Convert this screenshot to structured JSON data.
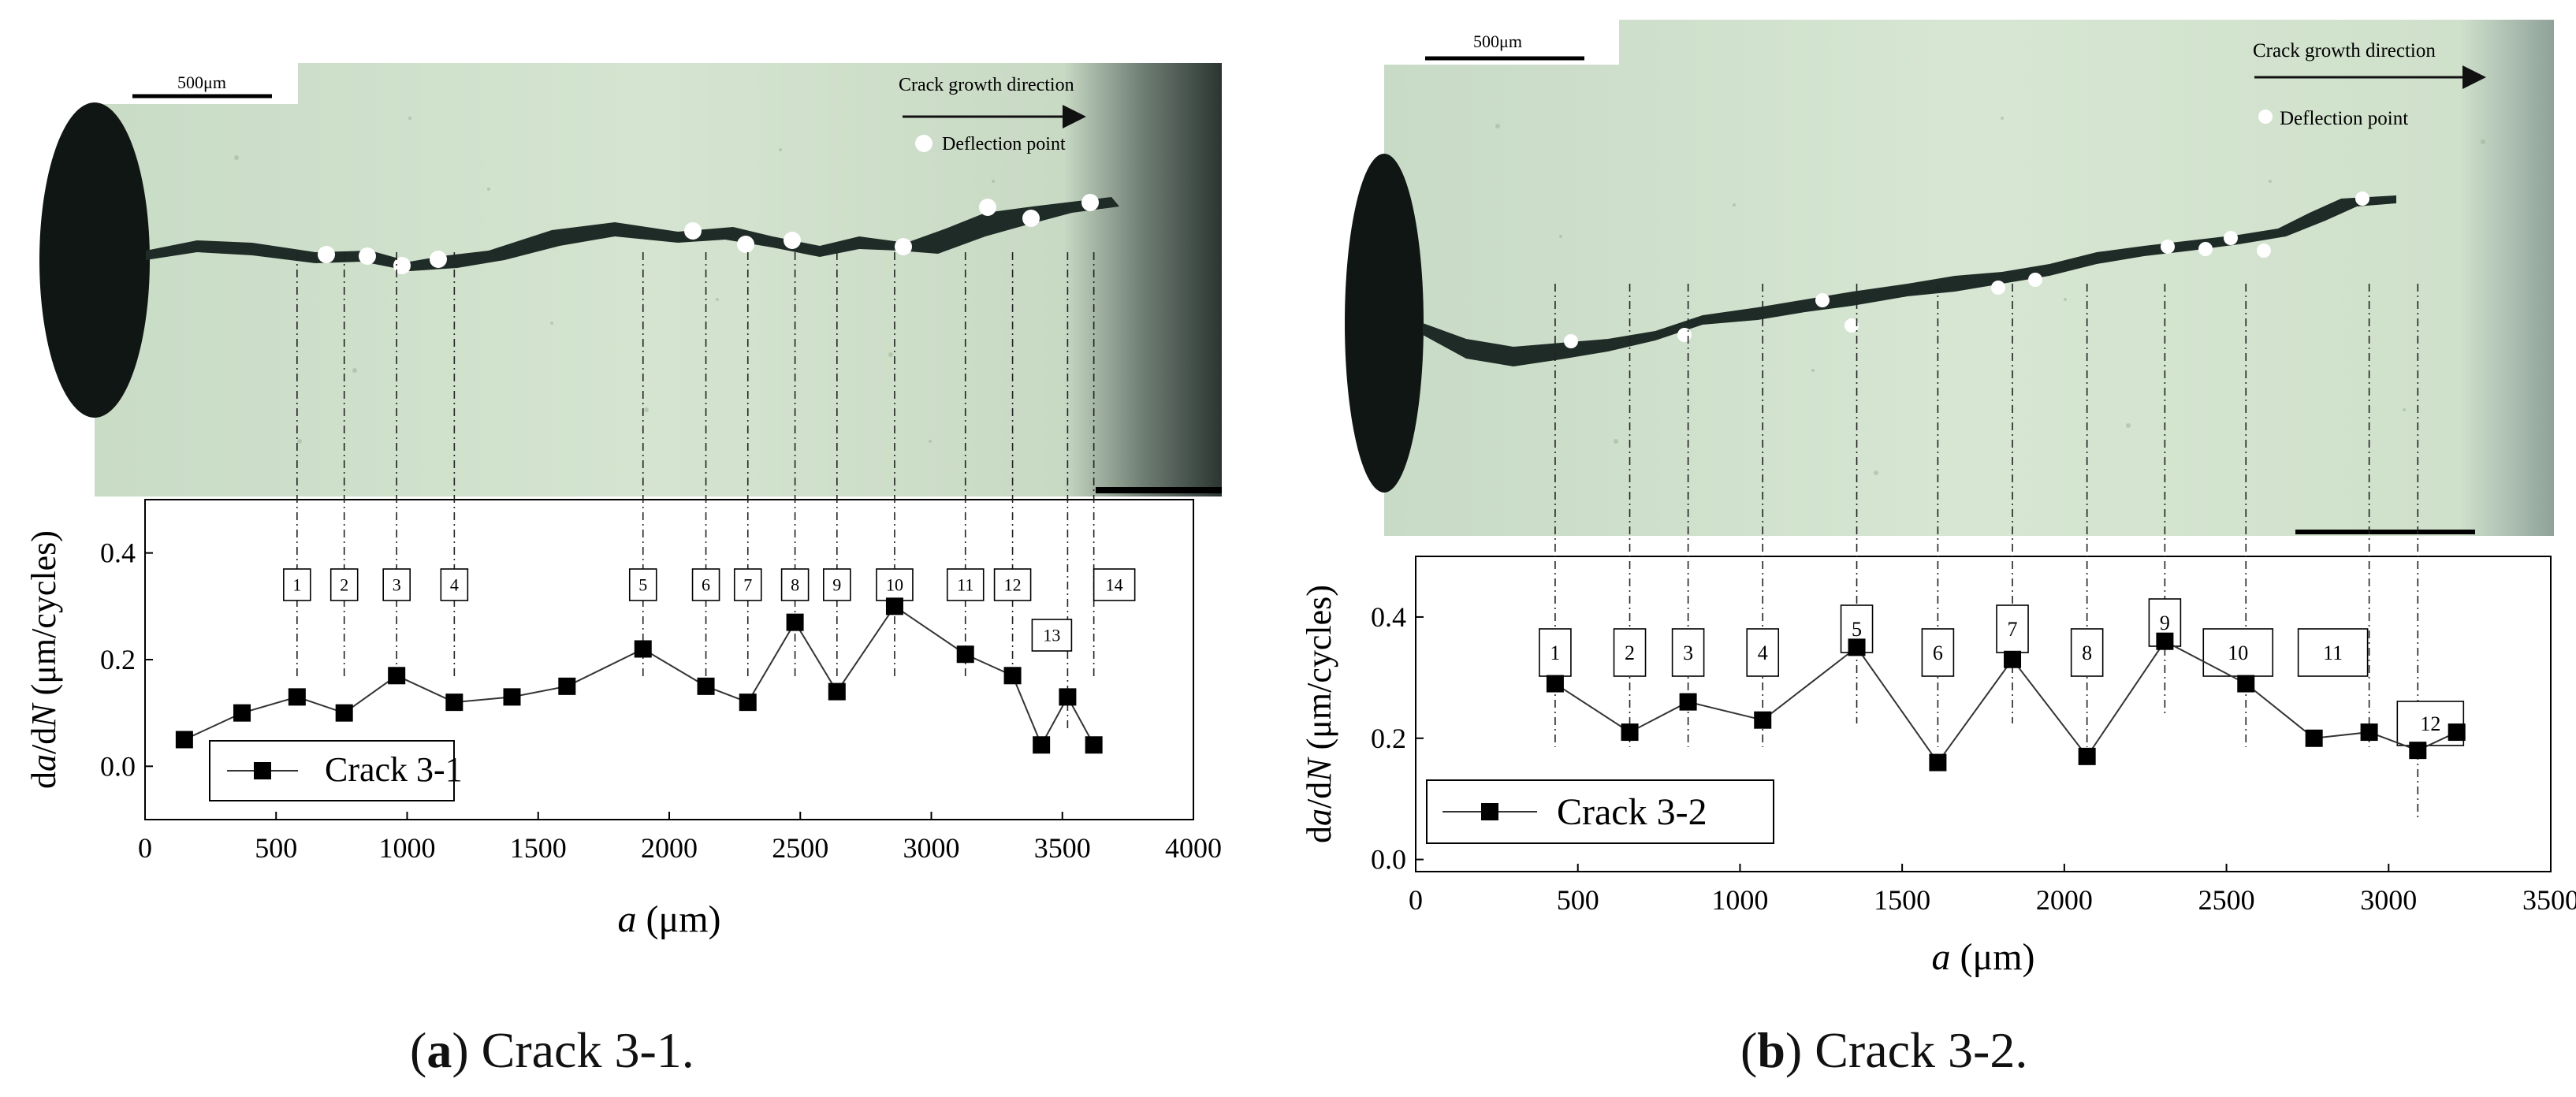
{
  "panels": [
    {
      "id": "a",
      "micrograph": {
        "scale_bar_label": "500μm",
        "direction_label": "Crack growth direction",
        "deflection_label": "Deflection point"
      },
      "caption": {
        "letter": "a",
        "text": ") Crack 3-1."
      }
    },
    {
      "id": "b",
      "micrograph": {
        "scale_bar_label": "500μm",
        "direction_label": "Crack growth direction",
        "deflection_label": "Deflection point"
      },
      "caption": {
        "letter": "b",
        "text": ") Crack 3-2."
      }
    }
  ],
  "colors": {
    "micrograph_bg": "#cfe0cc",
    "crack": "#1e2a26",
    "marker": "#000000",
    "line": "#333333",
    "dashdot": "#222222"
  },
  "chart_data": [
    {
      "type": "line",
      "title": "Crack 3-1",
      "xlabel_italic": "a",
      "xlabel_rest": " (μm)",
      "ylabel": "da/dN (μm/cycles)",
      "ylabel_parts": {
        "d1": "d",
        "a": "a",
        "slash": "/d",
        "N": "N",
        "unit": " (μm/cycles)"
      },
      "xlim": [
        0,
        4000
      ],
      "ylim": [
        -0.1,
        0.5
      ],
      "xticks": [
        0,
        500,
        1000,
        1500,
        2000,
        2500,
        3000,
        3500,
        4000
      ],
      "yticks": [
        0.0,
        0.2,
        0.4
      ],
      "ytick_labels": [
        "0.0",
        "0.2",
        "0.4"
      ],
      "legend": "Crack 3-1",
      "legend_position": "bottom-left",
      "series": [
        {
          "name": "Crack 3-1",
          "x": [
            150,
            370,
            580,
            760,
            960,
            1180,
            1400,
            1610,
            1900,
            2140,
            2300,
            2480,
            2640,
            2860,
            3130,
            3310,
            3420,
            3520,
            3620
          ],
          "y": [
            0.05,
            0.1,
            0.13,
            0.1,
            0.17,
            0.12,
            0.13,
            0.15,
            0.22,
            0.15,
            0.12,
            0.27,
            0.14,
            0.3,
            0.21,
            0.17,
            0.04,
            0.13,
            0.04
          ]
        }
      ],
      "deflection_labels": [
        "1",
        "2",
        "3",
        "4",
        "5",
        "6",
        "7",
        "8",
        "9",
        "10",
        "11",
        "12",
        "13",
        "14"
      ],
      "deflection_x": [
        580,
        760,
        960,
        1180,
        1900,
        2140,
        2300,
        2480,
        2640,
        2860,
        3130,
        3310,
        3520,
        3620
      ]
    },
    {
      "type": "line",
      "title": "Crack 3-2",
      "xlabel_italic": "a",
      "xlabel_rest": " (μm)",
      "ylabel": "da/dN (μm/cycles)",
      "ylabel_parts": {
        "d1": "d",
        "a": "a",
        "slash": "/d",
        "N": "N",
        "unit": " (μm/cycles)"
      },
      "xlim": [
        0,
        3500
      ],
      "ylim": [
        -0.02,
        0.5
      ],
      "xticks": [
        0,
        500,
        1000,
        1500,
        2000,
        2500,
        3000,
        3500
      ],
      "yticks": [
        0.0,
        0.2,
        0.4
      ],
      "ytick_labels": [
        "0.0",
        "0.2",
        "0.4"
      ],
      "legend": "Crack 3-2",
      "legend_position": "bottom-left",
      "series": [
        {
          "name": "Crack 3-2",
          "x": [
            430,
            660,
            840,
            1070,
            1360,
            1610,
            1840,
            2070,
            2310,
            2560,
            2770,
            2940,
            3090,
            3210
          ],
          "y": [
            0.29,
            0.21,
            0.26,
            0.23,
            0.35,
            0.16,
            0.33,
            0.17,
            0.36,
            0.29,
            0.2,
            0.21,
            0.18,
            0.21
          ]
        }
      ],
      "deflection_labels": [
        "1",
        "2",
        "3",
        "4",
        "5",
        "6",
        "7",
        "8",
        "9",
        "10",
        "11",
        "12"
      ],
      "deflection_x": [
        430,
        660,
        840,
        1070,
        1360,
        1610,
        1840,
        2070,
        2310,
        2560,
        2940,
        3090
      ]
    }
  ]
}
